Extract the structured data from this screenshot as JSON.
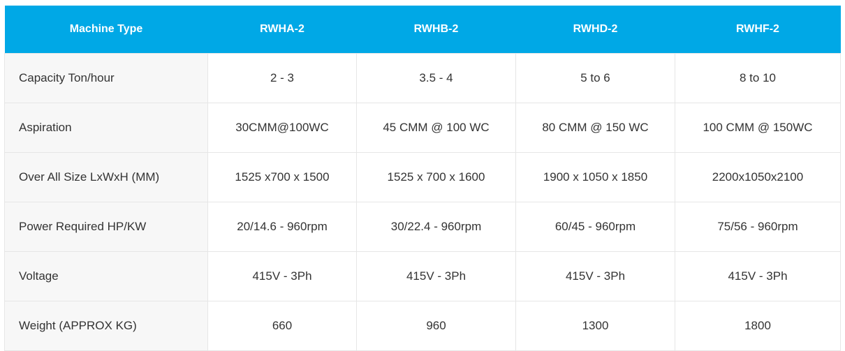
{
  "table": {
    "header": [
      "Machine Type",
      "RWHA-2",
      "RWHB-2",
      "RWHD-2",
      "RWHF-2"
    ],
    "rows": [
      [
        "Capacity Ton/hour",
        "2 - 3",
        "3.5 - 4",
        "5 to 6",
        "8 to 10"
      ],
      [
        "Aspiration",
        "30CMM@100WC",
        "45 CMM @ 100 WC",
        "80 CMM @ 150 WC",
        "100 CMM @ 150WC"
      ],
      [
        "Over All Size LxWxH (MM)",
        "1525 x700 x 1500",
        "1525 x 700 x 1600",
        "1900 x 1050 x 1850",
        "2200x1050x2100"
      ],
      [
        "Power Required HP/KW",
        "20/14.6 - 960rpm",
        "30/22.4 - 960rpm",
        "60/45 - 960rpm",
        "75/56 - 960rpm"
      ],
      [
        "Voltage",
        "415V - 3Ph",
        "415V - 3Ph",
        "415V - 3Ph",
        "415V - 3Ph"
      ],
      [
        "Weight (APPROX KG)",
        "660",
        "960",
        "1300",
        "1800"
      ]
    ]
  }
}
